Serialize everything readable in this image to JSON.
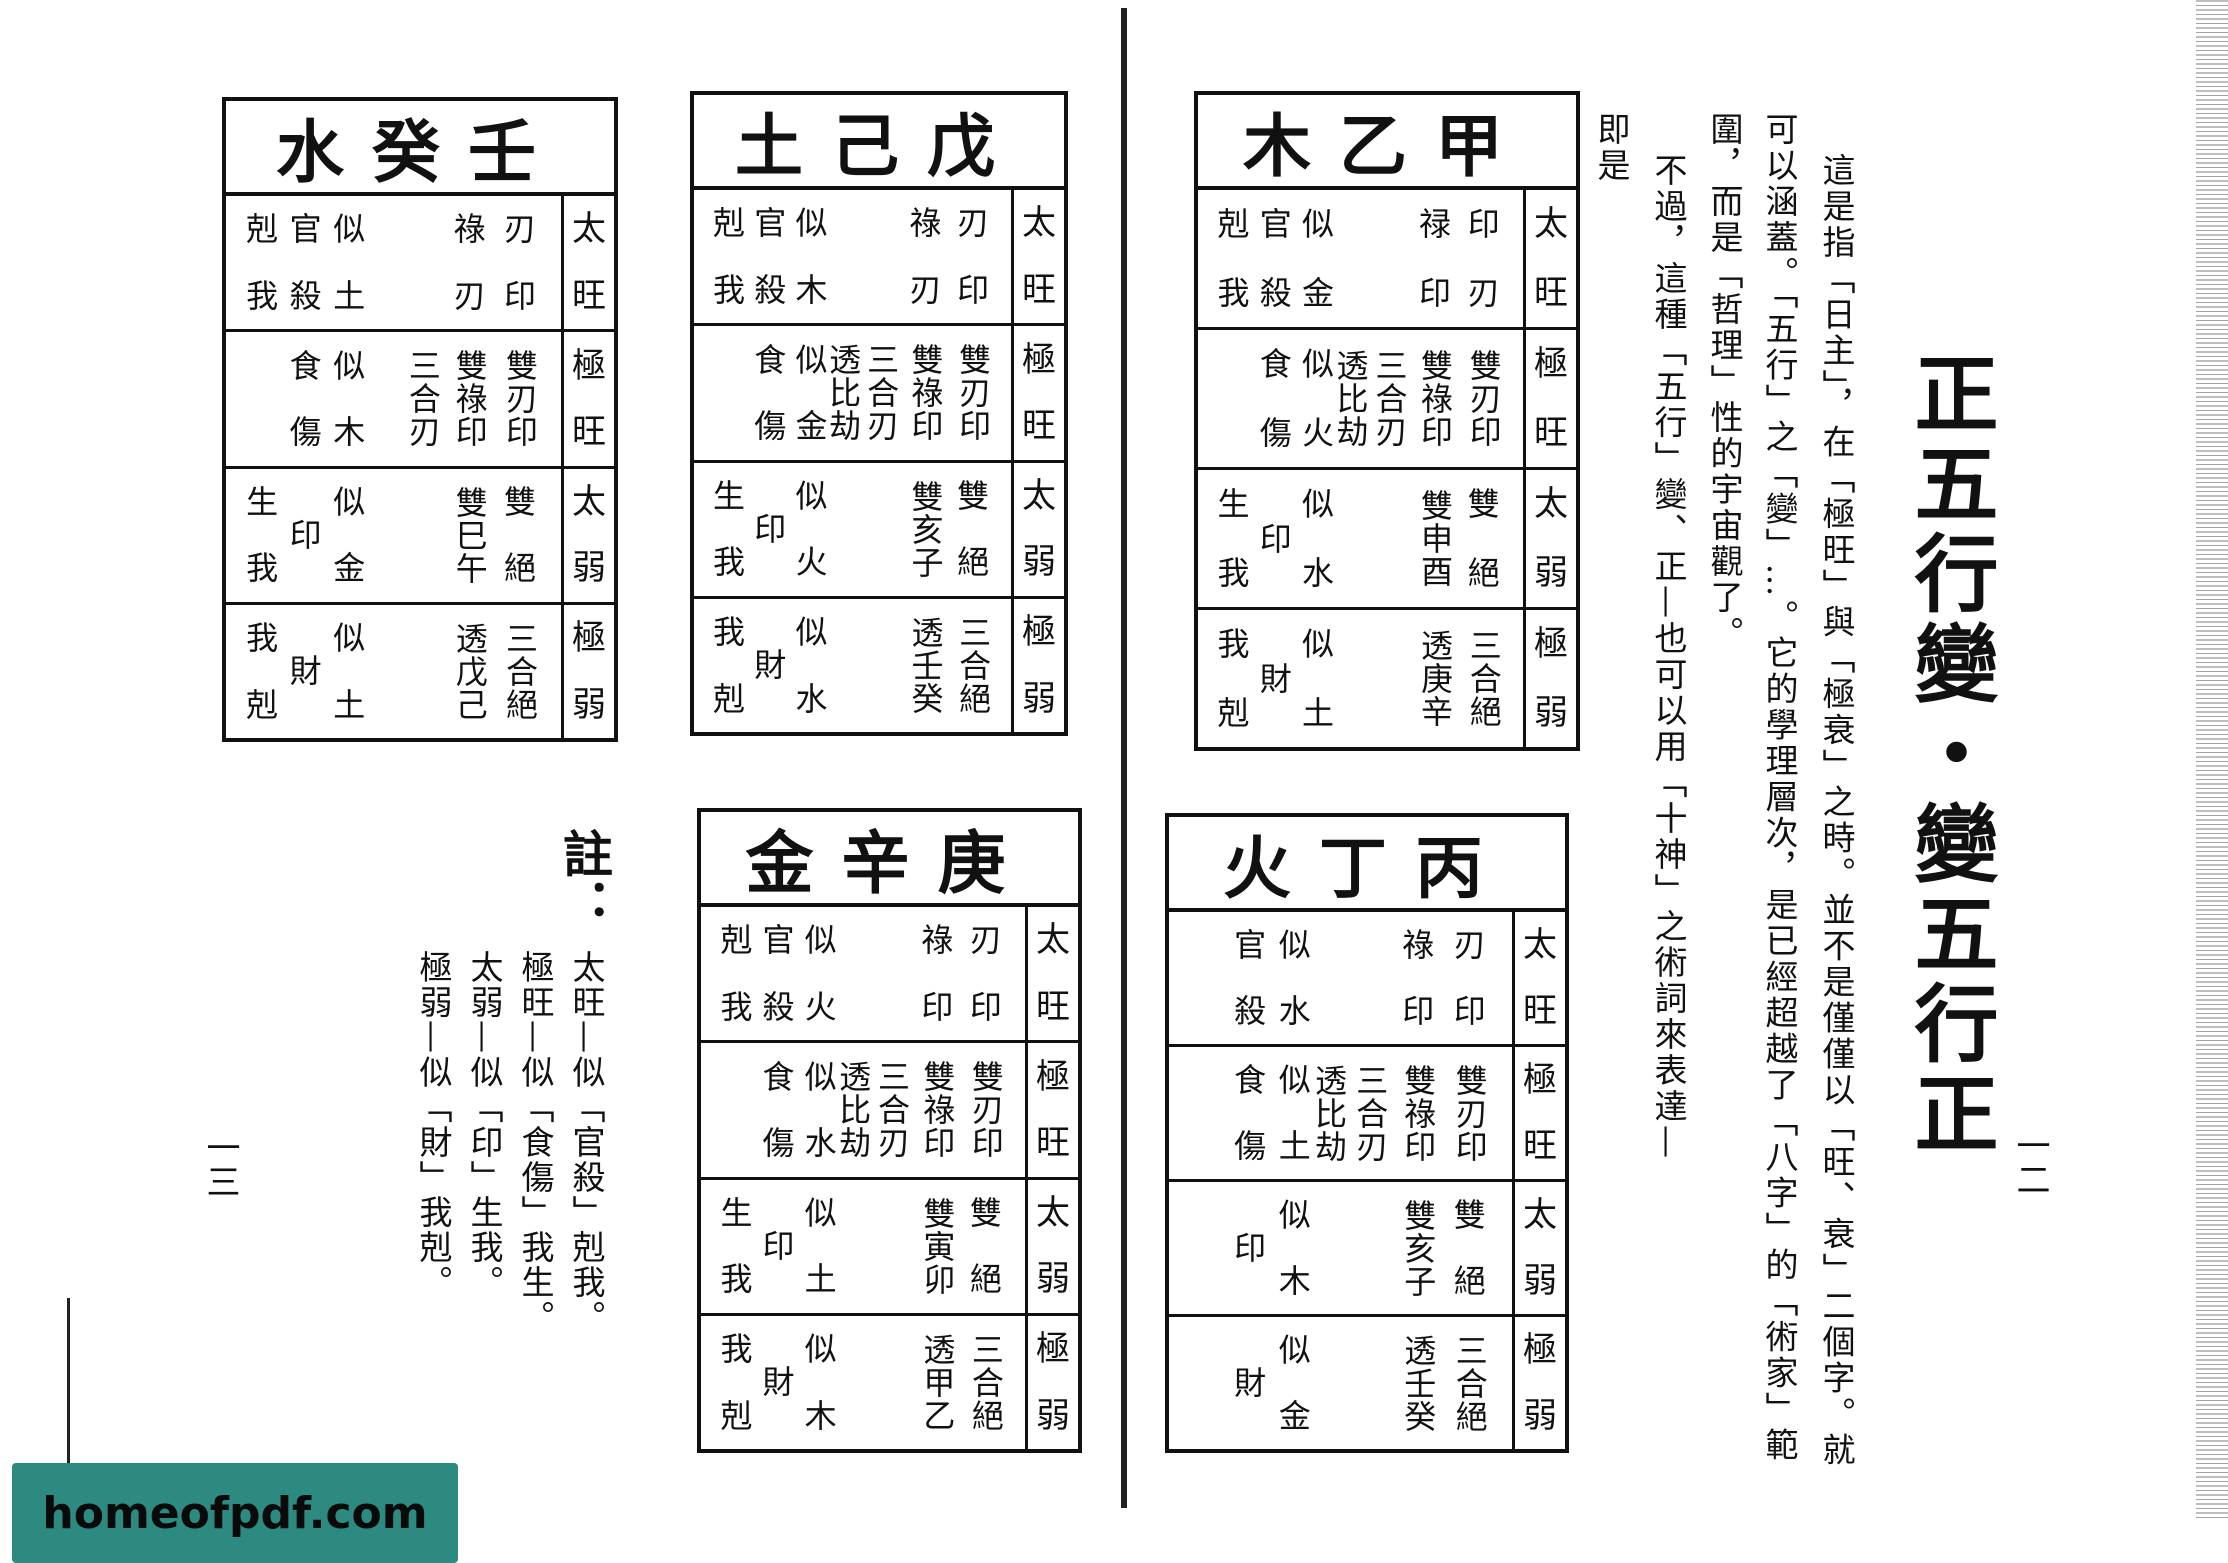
{
  "title": "正五行變・變五行正",
  "body_columns": [
    "這是指「日主」，在「極旺」與「極衰」之時。並不是僅僅以「旺、衰」二個字。就",
    "可以涵蓋。「五行」之「變」…。它的學理層次，是已經超越了「八字」的「術家」範",
    "圍，而是「哲理」性的宇宙觀了。",
    "不過，這種「五行」變、正—也可以用「十神」之術詞來表達—",
    "即是"
  ],
  "tables": [
    {
      "id": "jiayi",
      "title": "木乙甲",
      "rows": [
        {
          "label": [
            "太",
            "旺"
          ],
          "ring": [
            [
              "剋",
              "我"
            ],
            [
              "官",
              "殺"
            ]
          ],
          "mid": [
            "似",
            "金"
          ],
          "pair": [
            "禄",
            "印"
          ],
          "col": [
            "印",
            "刃"
          ]
        },
        {
          "label": [
            "極",
            "旺"
          ],
          "ring": [
            [
              "食",
              "傷"
            ]
          ],
          "mid": [
            "似",
            "火"
          ],
          "t1": "透比劫",
          "t2": "三合刃",
          "t3": "雙祿印",
          "t4": "雙刃印"
        },
        {
          "label": [
            "太",
            "弱"
          ],
          "a": [
            "生",
            "我"
          ],
          "b": "印",
          "mid": [
            "似",
            "水"
          ],
          "t3": "雙申酉",
          "col": [
            "雙",
            "絕"
          ]
        },
        {
          "label": [
            "極",
            "弱"
          ],
          "a": [
            "我",
            "剋"
          ],
          "b": "財",
          "mid": [
            "似",
            "土"
          ],
          "t3": "透庚辛",
          "t4": "三合絕"
        }
      ]
    },
    {
      "id": "bingding",
      "title": "火丁丙",
      "rows": [
        {
          "label": [
            "太",
            "旺"
          ],
          "ring": [
            [
              "官",
              "殺"
            ]
          ],
          "mid": [
            "似",
            "水"
          ],
          "pair": [
            "祿",
            "印"
          ],
          "col": [
            "刃",
            "印"
          ]
        },
        {
          "label": [
            "極",
            "旺"
          ],
          "ring": [
            [
              "食",
              "傷"
            ]
          ],
          "mid": [
            "似",
            "土"
          ],
          "t1": "透比劫",
          "t2": "三合刃",
          "t3": "雙祿印",
          "t4": "雙刃印"
        },
        {
          "label": [
            "太",
            "弱"
          ],
          "b": "印",
          "mid": [
            "似",
            "木"
          ],
          "t3": "雙亥子",
          "col": [
            "雙",
            "絕"
          ]
        },
        {
          "label": [
            "極",
            "弱"
          ],
          "b": "財",
          "mid": [
            "似",
            "金"
          ],
          "t3": "透壬癸",
          "t4": "三合絕"
        }
      ]
    },
    {
      "id": "wuji",
      "title": "土己戊",
      "rows": [
        {
          "label": [
            "太",
            "旺"
          ],
          "ring": [
            [
              "剋",
              "我"
            ],
            [
              "官",
              "殺"
            ]
          ],
          "mid": [
            "似",
            "木"
          ],
          "pair": [
            "祿",
            "刃"
          ],
          "col": [
            "刃",
            "印"
          ]
        },
        {
          "label": [
            "極",
            "旺"
          ],
          "ring": [
            [
              "食",
              "傷"
            ]
          ],
          "mid": [
            "似",
            "金"
          ],
          "t1": "透比劫",
          "t2": "三合刃",
          "t3": "雙祿印",
          "t4": "雙刃印"
        },
        {
          "label": [
            "太",
            "弱"
          ],
          "a": [
            "生",
            "我"
          ],
          "b": "印",
          "mid": [
            "似",
            "火"
          ],
          "t3": "雙亥子",
          "col": [
            "雙",
            "絕"
          ]
        },
        {
          "label": [
            "極",
            "弱"
          ],
          "a": [
            "我",
            "剋"
          ],
          "b": "財",
          "mid": [
            "似",
            "水"
          ],
          "t3": "透壬癸",
          "t4": "三合絕"
        }
      ]
    },
    {
      "id": "rengui",
      "title": "水癸壬",
      "rows": [
        {
          "label": [
            "太",
            "旺"
          ],
          "ring": [
            [
              "剋",
              "我"
            ],
            [
              "官",
              "殺"
            ]
          ],
          "mid": [
            "似",
            "土"
          ],
          "pair": [
            "祿",
            "刃"
          ],
          "col": [
            "刃",
            "印"
          ]
        },
        {
          "label": [
            "極",
            "旺"
          ],
          "ring": [
            [
              "食",
              "傷"
            ]
          ],
          "mid": [
            "似",
            "木"
          ],
          "t2": "三合刃",
          "t3": "雙祿印",
          "t4": "雙刃印"
        },
        {
          "label": [
            "太",
            "弱"
          ],
          "a": [
            "生",
            "我"
          ],
          "b": "印",
          "mid": [
            "似",
            "金"
          ],
          "t3": "雙巳午",
          "col": [
            "雙",
            "絕"
          ]
        },
        {
          "label": [
            "極",
            "弱"
          ],
          "a": [
            "我",
            "剋"
          ],
          "b": "財",
          "mid": [
            "似",
            "土"
          ],
          "t3": "透戊己",
          "t4": "三合絕"
        }
      ]
    },
    {
      "id": "gengxin",
      "title": "金辛庚",
      "rows": [
        {
          "label": [
            "太",
            "旺"
          ],
          "ring": [
            [
              "剋",
              "我"
            ],
            [
              "官",
              "殺"
            ]
          ],
          "mid": [
            "似",
            "火"
          ],
          "pair": [
            "祿",
            "印"
          ],
          "col": [
            "刃",
            "印"
          ]
        },
        {
          "label": [
            "極",
            "旺"
          ],
          "ring": [
            [
              "食",
              "傷"
            ]
          ],
          "mid": [
            "似",
            "水"
          ],
          "t1": "透比劫",
          "t2": "三合刃",
          "t3": "雙祿印",
          "t4": "雙刃印"
        },
        {
          "label": [
            "太",
            "弱"
          ],
          "a": [
            "生",
            "我"
          ],
          "b": "印",
          "mid": [
            "似",
            "土"
          ],
          "t3": "雙寅卯",
          "col": [
            "雙",
            "絕"
          ]
        },
        {
          "label": [
            "極",
            "弱"
          ],
          "a": [
            "我",
            "剋"
          ],
          "b": "財",
          "mid": [
            "似",
            "木"
          ],
          "t3": "透甲乙",
          "t4": "三合絕"
        }
      ]
    }
  ],
  "note": {
    "heading": "註：",
    "lines": [
      "太旺—似「官殺」剋我。",
      "極旺—似「食傷」我生。",
      "太弱—似「印」生我。",
      "極弱—似「財」我剋。"
    ]
  },
  "page_right": "一二",
  "page_left": "一三",
  "watermark": "homeofpdf.com"
}
